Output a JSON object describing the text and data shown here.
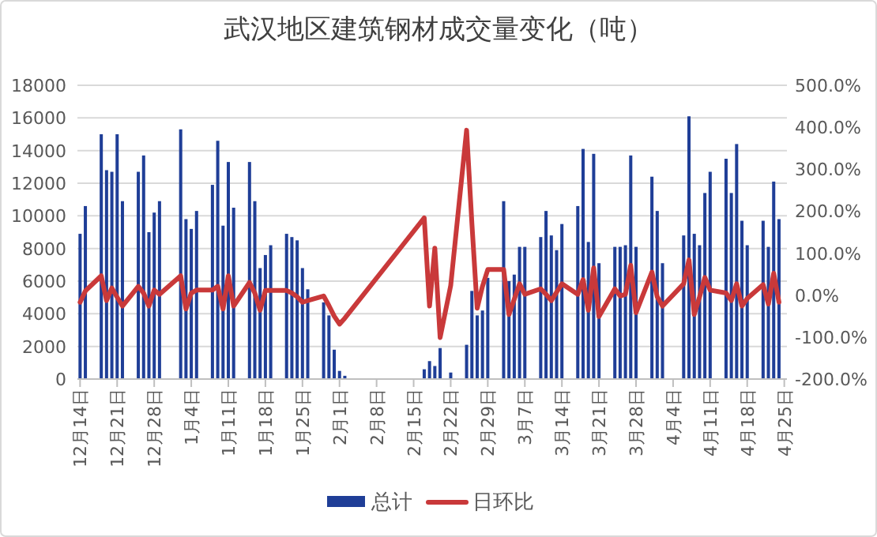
{
  "chart_data": {
    "type": "bar",
    "title": "武汉地区建筑钢材成交量变化（吨）",
    "categories": [
      "12月14日",
      null,
      null,
      null,
      null,
      null,
      null,
      "12月21日",
      null,
      null,
      null,
      null,
      null,
      null,
      "12月28日",
      null,
      null,
      null,
      null,
      null,
      null,
      "1月4日",
      null,
      null,
      null,
      null,
      null,
      null,
      "1月11日",
      null,
      null,
      null,
      null,
      null,
      null,
      "1月18日",
      null,
      null,
      null,
      null,
      null,
      null,
      "1月25日",
      null,
      null,
      null,
      null,
      null,
      null,
      "2月1日",
      null,
      null,
      null,
      null,
      null,
      null,
      "2月8日",
      null,
      null,
      null,
      null,
      null,
      null,
      "2月15日",
      null,
      null,
      null,
      null,
      null,
      null,
      "2月22日",
      null,
      null,
      null,
      null,
      null,
      null,
      "2月29日",
      null,
      null,
      null,
      null,
      null,
      null,
      "3月7日",
      null,
      null,
      null,
      null,
      null,
      null,
      "3月14日",
      null,
      null,
      null,
      null,
      null,
      null,
      "3月21日",
      null,
      null,
      null,
      null,
      null,
      null,
      "3月28日",
      null,
      null,
      null,
      null,
      null,
      null,
      "4月4日",
      null,
      null,
      null,
      null,
      null,
      null,
      "4月11日",
      null,
      null,
      null,
      null,
      null,
      null,
      "4月18日",
      null,
      null,
      null,
      null,
      null,
      null,
      "4月25日"
    ],
    "ylim": [
      0,
      18000
    ],
    "yticks": [
      0,
      2000,
      4000,
      6000,
      8000,
      10000,
      12000,
      14000,
      16000,
      18000
    ],
    "y2lim": [
      -200,
      500
    ],
    "y2ticks": [
      {
        "value": -200,
        "label": "-200.0%"
      },
      {
        "value": -100,
        "label": "-100.0%"
      },
      {
        "value": 0,
        "label": "0.0%"
      },
      {
        "value": 100,
        "label": "100.0%"
      },
      {
        "value": 200,
        "label": "200.0%"
      },
      {
        "value": 300,
        "label": "300.0%"
      },
      {
        "value": 400,
        "label": "400.0%"
      },
      {
        "value": 500,
        "label": "500.0%"
      }
    ],
    "grid": "y",
    "legend": "bottom",
    "series": [
      {
        "name": "总计",
        "color": "#1f3e97",
        "values": [
          8900,
          10600,
          null,
          null,
          15000,
          12800,
          12700,
          15000,
          10900,
          null,
          null,
          12700,
          13700,
          9000,
          10200,
          10900,
          null,
          null,
          null,
          15300,
          9800,
          9200,
          10300,
          null,
          null,
          11900,
          14600,
          9400,
          13300,
          10500,
          null,
          null,
          13300,
          10900,
          6800,
          7600,
          8200,
          null,
          null,
          8900,
          8700,
          8500,
          6800,
          5500,
          null,
          null,
          4700,
          3900,
          1800,
          500,
          200,
          null,
          null,
          null,
          null,
          null,
          null,
          null,
          null,
          null,
          null,
          null,
          null,
          null,
          null,
          600,
          1100,
          800,
          1900,
          null,
          400,
          null,
          null,
          2100,
          5400,
          3900,
          4200,
          6200,
          null,
          null,
          10900,
          6000,
          6400,
          8100,
          8100,
          null,
          null,
          8700,
          10300,
          8800,
          7900,
          9500,
          null,
          null,
          10600,
          14100,
          8400,
          13800,
          7100,
          null,
          null,
          8100,
          8100,
          8200,
          13700,
          8100,
          null,
          null,
          12400,
          10300,
          7100,
          null,
          null,
          null,
          8800,
          16100,
          8900,
          8200,
          11400,
          12700,
          null,
          null,
          13500,
          11400,
          14400,
          9700,
          8200,
          null,
          null,
          9700,
          8100,
          12100,
          9800,
          null
        ]
      },
      {
        "name": "日环比",
        "type": "line",
        "axis": "y2",
        "color": "#c9393a",
        "values": [
          -17,
          10,
          null,
          null,
          46,
          -13,
          17,
          -5,
          -26,
          null,
          null,
          21,
          5,
          -26,
          12,
          2,
          null,
          null,
          null,
          46,
          -33,
          5,
          12,
          null,
          null,
          12,
          21,
          -33,
          46,
          -26,
          null,
          null,
          30,
          5,
          -36,
          11,
          11,
          null,
          null,
          11,
          5,
          -4,
          -17,
          -13,
          null,
          null,
          -2,
          -25,
          -50,
          -69,
          -55,
          null,
          null,
          null,
          null,
          null,
          null,
          null,
          null,
          null,
          null,
          null,
          null,
          null,
          null,
          184,
          -26,
          112,
          -101,
          null,
          23,
          null,
          null,
          393,
          171,
          -31,
          21,
          61,
          null,
          null,
          61,
          -46,
          -10,
          27,
          2,
          null,
          null,
          15,
          2,
          -13,
          7,
          27,
          null,
          null,
          2,
          37,
          -36,
          65,
          -51,
          null,
          null,
          15,
          -2,
          2,
          71,
          -42,
          null,
          null,
          55,
          -4,
          -26,
          null,
          null,
          null,
          27,
          84,
          -46,
          -4,
          42,
          12,
          null,
          null,
          5,
          -13,
          27,
          -26,
          -8,
          null,
          null,
          25,
          -21,
          52,
          -17,
          null
        ]
      }
    ]
  }
}
